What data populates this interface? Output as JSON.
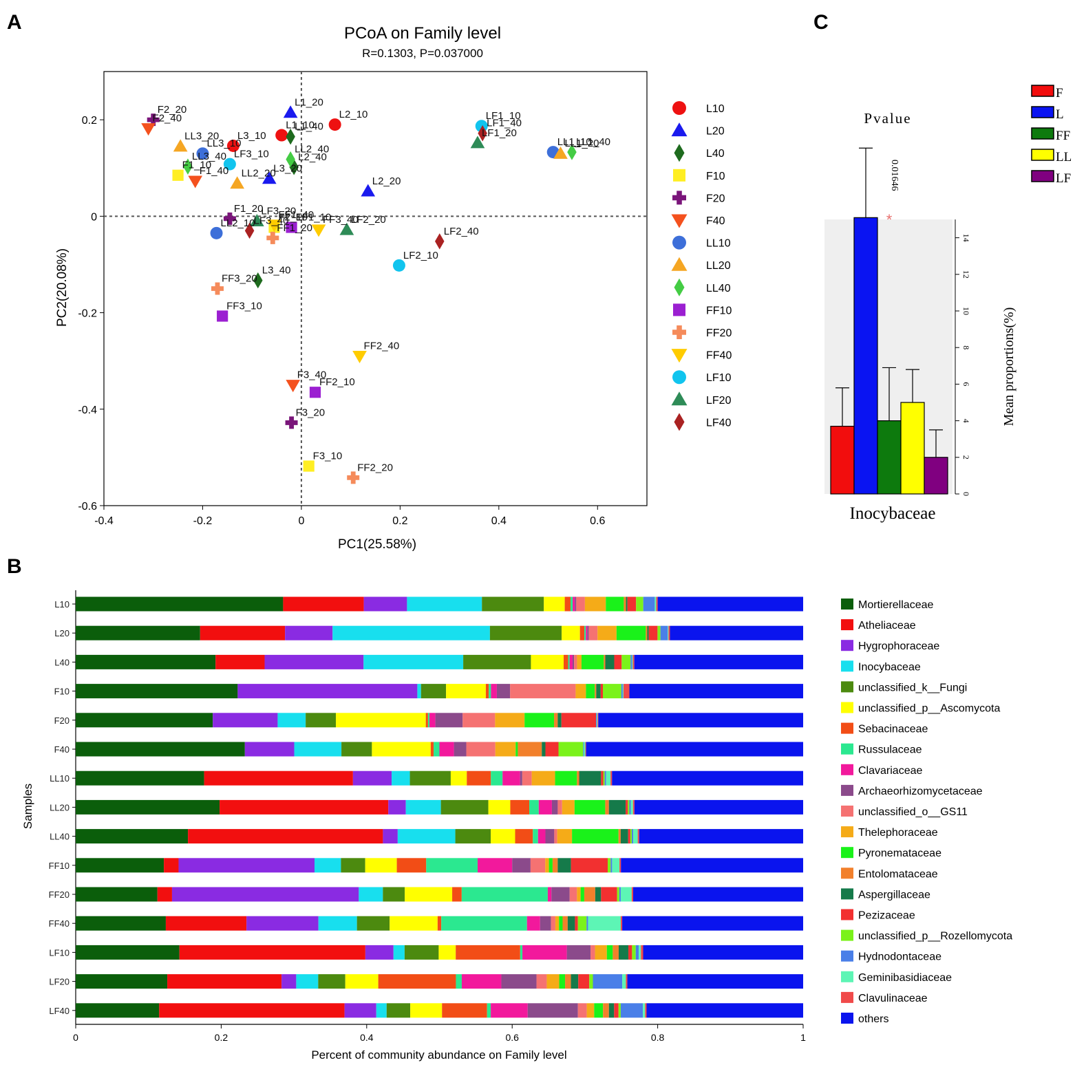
{
  "panel_labels": {
    "a": "A",
    "b": "B",
    "c": "C"
  },
  "chart_data": [
    {
      "id": "pcoa",
      "type": "scatter",
      "title": "PCoA on Family level",
      "subtitle": "R=0.1303, P=0.037000",
      "xlabel": "PC1(25.58%)",
      "ylabel": "PC2(20.08%)",
      "xlim": [
        -0.4,
        0.7
      ],
      "ylim": [
        -0.6,
        0.3
      ],
      "xticks": [
        -0.4,
        -0.2,
        0,
        0.2,
        0.4,
        0.6
      ],
      "xtick_labels": [
        "-0.4",
        "-0.2",
        "0",
        "0.2",
        "0.4",
        "0.6"
      ],
      "yticks": [
        -0.6,
        -0.4,
        -0.2,
        0,
        0.2
      ],
      "ytick_labels": [
        "-0.6",
        "-0.4",
        "-0.2",
        "0",
        "0.2"
      ],
      "groups": [
        {
          "name": "L10",
          "color": "#ee1111",
          "shape": "circle"
        },
        {
          "name": "L20",
          "color": "#1a1aee",
          "shape": "triangle-up"
        },
        {
          "name": "L40",
          "color": "#1e6b1e",
          "shape": "diamond"
        },
        {
          "name": "F10",
          "color": "#ffee22",
          "shape": "square"
        },
        {
          "name": "F20",
          "color": "#7a157a",
          "shape": "plus"
        },
        {
          "name": "F40",
          "color": "#f4511e",
          "shape": "triangle-down"
        },
        {
          "name": "LL10",
          "color": "#3d6fd9",
          "shape": "circle"
        },
        {
          "name": "LL20",
          "color": "#f5a623",
          "shape": "triangle-up"
        },
        {
          "name": "LL40",
          "color": "#44cc44",
          "shape": "diamond"
        },
        {
          "name": "FF10",
          "color": "#9b1fd1",
          "shape": "square"
        },
        {
          "name": "FF20",
          "color": "#f58b5b",
          "shape": "plus"
        },
        {
          "name": "FF40",
          "color": "#ffcc00",
          "shape": "triangle-down"
        },
        {
          "name": "LF10",
          "color": "#11c4ee",
          "shape": "circle"
        },
        {
          "name": "LF20",
          "color": "#2e8b57",
          "shape": "triangle-up"
        },
        {
          "name": "LF40",
          "color": "#aa2222",
          "shape": "diamond"
        }
      ],
      "points": [
        {
          "label": "L1_10",
          "group": "L10",
          "x": -0.04,
          "y": 0.168
        },
        {
          "label": "L2_10",
          "group": "L10",
          "x": 0.068,
          "y": 0.19
        },
        {
          "label": "L3_10",
          "group": "L10",
          "x": -0.138,
          "y": 0.146
        },
        {
          "label": "L1_20",
          "group": "L20",
          "x": -0.022,
          "y": 0.215
        },
        {
          "label": "L2_20",
          "group": "L20",
          "x": 0.135,
          "y": 0.052
        },
        {
          "label": "L3_20",
          "group": "L20",
          "x": -0.065,
          "y": 0.078
        },
        {
          "label": "L1_40",
          "group": "L40",
          "x": -0.022,
          "y": 0.165
        },
        {
          "label": "L2_40",
          "group": "L40",
          "x": -0.015,
          "y": 0.102
        },
        {
          "label": "L3_40",
          "group": "L40",
          "x": -0.088,
          "y": -0.133
        },
        {
          "label": "F1_10",
          "group": "F10",
          "x": -0.25,
          "y": 0.085
        },
        {
          "label": "F2_10",
          "group": "F10",
          "x": -0.055,
          "y": -0.023
        },
        {
          "label": "F3_10",
          "group": "F10",
          "x": 0.015,
          "y": -0.518
        },
        {
          "label": "F1_20",
          "group": "F20",
          "x": -0.145,
          "y": -0.005
        },
        {
          "label": "F2_20",
          "group": "F20",
          "x": -0.3,
          "y": 0.2
        },
        {
          "label": "F3_20",
          "group": "F20",
          "x": -0.02,
          "y": -0.428
        },
        {
          "label": "F1_40",
          "group": "F40",
          "x": -0.215,
          "y": 0.073
        },
        {
          "label": "F2_40",
          "group": "F40",
          "x": -0.31,
          "y": 0.182
        },
        {
          "label": "F3_40",
          "group": "F40",
          "x": -0.017,
          "y": -0.35
        },
        {
          "label": "LL1_10",
          "group": "LL10",
          "x": 0.51,
          "y": 0.133
        },
        {
          "label": "LL2_10",
          "group": "LL10",
          "x": -0.172,
          "y": -0.035
        },
        {
          "label": "LL3_10",
          "group": "LL10",
          "x": -0.2,
          "y": 0.13
        },
        {
          "label": "LL1_20",
          "group": "LL20",
          "x": 0.525,
          "y": 0.13
        },
        {
          "label": "LL2_20",
          "group": "LL20",
          "x": -0.13,
          "y": 0.068
        },
        {
          "label": "LL3_20",
          "group": "LL20",
          "x": -0.245,
          "y": 0.145
        },
        {
          "label": "LL1_40",
          "group": "LL40",
          "x": 0.548,
          "y": 0.133
        },
        {
          "label": "LL2_40",
          "group": "LL40",
          "x": -0.022,
          "y": 0.118
        },
        {
          "label": "LL3_40",
          "group": "LL40",
          "x": -0.23,
          "y": 0.103
        },
        {
          "label": "FF1_10",
          "group": "FF10",
          "x": -0.02,
          "y": -0.023
        },
        {
          "label": "FF2_10",
          "group": "FF10",
          "x": 0.028,
          "y": -0.365
        },
        {
          "label": "FF3_10",
          "group": "FF10",
          "x": -0.16,
          "y": -0.207
        },
        {
          "label": "FF1_20",
          "group": "FF20",
          "x": -0.058,
          "y": -0.045
        },
        {
          "label": "FF2_20",
          "group": "FF20",
          "x": 0.105,
          "y": -0.542
        },
        {
          "label": "FF3_20",
          "group": "FF20",
          "x": -0.17,
          "y": -0.15
        },
        {
          "label": "FF1_40",
          "group": "FF40",
          "x": -0.055,
          "y": -0.018
        },
        {
          "label": "FF2_40",
          "group": "FF40",
          "x": 0.118,
          "y": -0.29
        },
        {
          "label": "FF3_40",
          "group": "FF40",
          "x": 0.035,
          "y": -0.028
        },
        {
          "label": "LF1_10",
          "group": "LF10",
          "x": 0.365,
          "y": 0.187
        },
        {
          "label": "LF2_10",
          "group": "LF10",
          "x": 0.198,
          "y": -0.102
        },
        {
          "label": "LF3_10",
          "group": "LF10",
          "x": -0.145,
          "y": 0.108
        },
        {
          "label": "LF1_20",
          "group": "LF20",
          "x": 0.357,
          "y": 0.152
        },
        {
          "label": "LF2_20",
          "group": "LF20",
          "x": 0.092,
          "y": -0.028
        },
        {
          "label": "LF3_20",
          "group": "LF20",
          "x": -0.09,
          "y": -0.01
        },
        {
          "label": "LF1_40",
          "group": "LF40",
          "x": 0.367,
          "y": 0.172
        },
        {
          "label": "LF2_40",
          "group": "LF40",
          "x": 0.28,
          "y": -0.052
        },
        {
          "label": "LF3_40",
          "group": "LF40",
          "x": -0.105,
          "y": -0.03
        }
      ]
    },
    {
      "id": "stacked",
      "type": "bar",
      "orientation": "horizontal",
      "stacked": true,
      "xlabel": "Percent of community abundance on Family level",
      "ylabel": "Samples",
      "xlim": [
        0,
        1
      ],
      "xticks": [
        0,
        0.2,
        0.4,
        0.6,
        0.8,
        1
      ],
      "xtick_labels": [
        "0",
        "0.2",
        "0.4",
        "0.6",
        "0.8",
        "1"
      ],
      "categories": [
        "L10",
        "L20",
        "L40",
        "F10",
        "F20",
        "F40",
        "LL10",
        "LL20",
        "LL40",
        "FF10",
        "FF20",
        "FF40",
        "LF10",
        "LF20",
        "LF40"
      ],
      "series": [
        {
          "name": "Mortierellaceae",
          "color": "#0b5e0b",
          "values": [
            0.288,
            0.17,
            0.188,
            0.22,
            0.186,
            0.233,
            0.176,
            0.197,
            0.152,
            0.12,
            0.112,
            0.124,
            0.14,
            0.125,
            0.113
          ]
        },
        {
          "name": "Atheliaceae",
          "color": "#f20f0f",
          "values": [
            0.112,
            0.116,
            0.066,
            0.0,
            0.0,
            0.0,
            0.204,
            0.231,
            0.264,
            0.02,
            0.02,
            0.111,
            0.251,
            0.156,
            0.251
          ]
        },
        {
          "name": "Hygrophoraceae",
          "color": "#8a2be2",
          "values": [
            0.06,
            0.065,
            0.133,
            0.244,
            0.088,
            0.068,
            0.053,
            0.024,
            0.02,
            0.185,
            0.256,
            0.099,
            0.038,
            0.02,
            0.043
          ]
        },
        {
          "name": "Inocybaceae",
          "color": "#18dfee",
          "values": [
            0.104,
            0.215,
            0.134,
            0.005,
            0.038,
            0.065,
            0.025,
            0.048,
            0.078,
            0.036,
            0.033,
            0.053,
            0.015,
            0.03,
            0.014
          ]
        },
        {
          "name": "unclassified_k__Fungi",
          "color": "#4c8a0f",
          "values": [
            0.086,
            0.098,
            0.091,
            0.034,
            0.041,
            0.042,
            0.056,
            0.065,
            0.048,
            0.033,
            0.03,
            0.045,
            0.046,
            0.037,
            0.032
          ]
        },
        {
          "name": "unclassified_p__Ascomycota",
          "color": "#ffff00",
          "values": [
            0.029,
            0.025,
            0.044,
            0.054,
            0.122,
            0.081,
            0.022,
            0.03,
            0.033,
            0.043,
            0.065,
            0.066,
            0.023,
            0.045,
            0.043
          ]
        },
        {
          "name": "Sebacinaceae",
          "color": "#f24d16",
          "values": [
            0.008,
            0.006,
            0.006,
            0.004,
            0.003,
            0.004,
            0.033,
            0.026,
            0.024,
            0.04,
            0.013,
            0.005,
            0.087,
            0.106,
            0.061
          ]
        },
        {
          "name": "Russulaceae",
          "color": "#2be890",
          "values": [
            0.003,
            0.002,
            0.002,
            0.003,
            0.002,
            0.008,
            0.016,
            0.013,
            0.007,
            0.07,
            0.118,
            0.118,
            0.003,
            0.008,
            0.005
          ]
        },
        {
          "name": "Clavariaceae",
          "color": "#f2199c",
          "values": [
            0.003,
            0.002,
            0.004,
            0.008,
            0.008,
            0.02,
            0.024,
            0.018,
            0.01,
            0.047,
            0.005,
            0.018,
            0.06,
            0.054,
            0.05
          ]
        },
        {
          "name": "Archaeorhizomycetaceae",
          "color": "#8b4a8b",
          "values": [
            0.002,
            0.002,
            0.002,
            0.018,
            0.037,
            0.017,
            0.003,
            0.008,
            0.012,
            0.025,
            0.025,
            0.015,
            0.032,
            0.048,
            0.068
          ]
        },
        {
          "name": "unclassified_o__GS11",
          "color": "#f57272",
          "values": [
            0.012,
            0.012,
            0.004,
            0.089,
            0.044,
            0.04,
            0.013,
            0.006,
            0.004,
            0.02,
            0.01,
            0.006,
            0.006,
            0.014,
            0.012
          ]
        },
        {
          "name": "Thelephoraceae",
          "color": "#f5ab18",
          "values": [
            0.029,
            0.026,
            0.006,
            0.014,
            0.04,
            0.028,
            0.032,
            0.017,
            0.02,
            0.005,
            0.005,
            0.005,
            0.016,
            0.017,
            0.01
          ]
        },
        {
          "name": "Pyronemataceae",
          "color": "#1af21a",
          "values": [
            0.025,
            0.04,
            0.03,
            0.012,
            0.04,
            0.003,
            0.03,
            0.042,
            0.063,
            0.005,
            0.005,
            0.005,
            0.008,
            0.008,
            0.012
          ]
        },
        {
          "name": "Entolomataceae",
          "color": "#f2802b",
          "values": [
            0.003,
            0.002,
            0.002,
            0.002,
            0.005,
            0.033,
            0.003,
            0.005,
            0.003,
            0.007,
            0.015,
            0.007,
            0.008,
            0.008,
            0.008
          ]
        },
        {
          "name": "Aspergillaceae",
          "color": "#157a4a",
          "values": [
            0.002,
            0.002,
            0.012,
            0.006,
            0.005,
            0.005,
            0.03,
            0.023,
            0.01,
            0.018,
            0.008,
            0.01,
            0.013,
            0.01,
            0.007
          ]
        },
        {
          "name": "Pezizaceae",
          "color": "#f23030",
          "values": [
            0.012,
            0.012,
            0.01,
            0.003,
            0.047,
            0.018,
            0.003,
            0.003,
            0.003,
            0.05,
            0.022,
            0.004,
            0.005,
            0.015,
            0.006
          ]
        },
        {
          "name": "unclassified_p__Rozellomycota",
          "color": "#7bf21a",
          "values": [
            0.01,
            0.004,
            0.012,
            0.025,
            0.0,
            0.034,
            0.002,
            0.002,
            0.002,
            0.004,
            0.003,
            0.012,
            0.005,
            0.005,
            0.003
          ]
        },
        {
          "name": "Hydnodontaceae",
          "color": "#4a7fe8",
          "values": [
            0.016,
            0.01,
            0.002,
            0.002,
            0.001,
            0.001,
            0.002,
            0.002,
            0.002,
            0.002,
            0.002,
            0.002,
            0.004,
            0.04,
            0.03
          ]
        },
        {
          "name": "Geminibasidiaceae",
          "color": "#5df5b5",
          "values": [
            0.002,
            0.001,
            0.001,
            0.001,
            0.001,
            0.002,
            0.006,
            0.003,
            0.006,
            0.01,
            0.015,
            0.045,
            0.003,
            0.005,
            0.003
          ]
        },
        {
          "name": "Clavulinaceae",
          "color": "#f04a4a",
          "values": [
            0.002,
            0.002,
            0.002,
            0.008,
            0.001,
            0.001,
            0.002,
            0.002,
            0.002,
            0.002,
            0.002,
            0.002,
            0.003,
            0.002,
            0.002
          ]
        },
        {
          "name": "others",
          "color": "#0a14ee",
          "values": [
            0.202,
            0.182,
            0.227,
            0.236,
            0.278,
            0.299,
            0.262,
            0.231,
            0.222,
            0.248,
            0.233,
            0.249,
            0.216,
            0.24,
            0.212
          ]
        }
      ]
    },
    {
      "id": "pvalue",
      "type": "bar",
      "title": "Pvalue",
      "pvalue_label": "0.01646",
      "star": "*",
      "xlabel": "Inocybaceae",
      "ylabel": "Mean proportions(%)",
      "ylim": [
        0,
        15
      ],
      "yticks": [
        0,
        2,
        4,
        6,
        8,
        10,
        12,
        14
      ],
      "ytick_labels": [
        "0",
        "2",
        "4",
        "6",
        "8",
        "10",
        "12",
        "14"
      ],
      "categories": [
        "F",
        "L",
        "FF",
        "LL",
        "LF"
      ],
      "colors": [
        "#f20d0d",
        "#0a14f2",
        "#0d7a0d",
        "#ffff00",
        "#800080"
      ],
      "values": [
        3.7,
        15.1,
        4.0,
        5.0,
        2.0
      ],
      "err_upper": [
        5.8,
        18.9,
        6.9,
        6.8,
        3.5
      ]
    }
  ]
}
